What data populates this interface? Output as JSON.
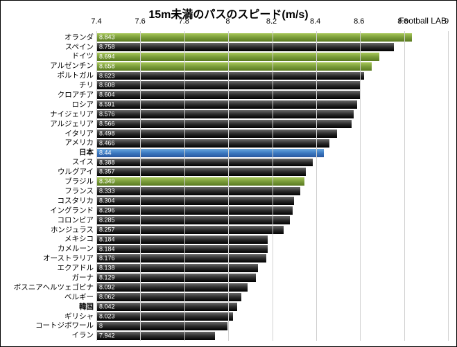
{
  "chart": {
    "type": "horizontal-bar",
    "title": "15m未満のパスのスピード(m/s)",
    "source": "Football LAB",
    "title_fontsize": 16,
    "label_fontsize": 10.5,
    "value_fontsize": 9,
    "axis_fontsize": 11,
    "xmin": 7.4,
    "xmax": 9.0,
    "xtick_step": 0.2,
    "xticks": [
      "7.4",
      "7.6",
      "7.8",
      "8",
      "8.2",
      "8.4",
      "8.6",
      "8.8",
      "9"
    ],
    "background_color": "#ffffff",
    "gridline_color": "#d0d0d0",
    "colors": {
      "default": "#2a2a2a",
      "green": "#7a9c3a",
      "blue": "#3a78c0",
      "value_text": "#ffffff"
    },
    "rows": [
      {
        "label": "オランダ",
        "value": 8.843,
        "value_text": "8.843",
        "color": "green",
        "bold": false
      },
      {
        "label": "スペイン",
        "value": 8.758,
        "value_text": "8.758",
        "color": "default",
        "bold": false
      },
      {
        "label": "ドイツ",
        "value": 8.694,
        "value_text": "8.694",
        "color": "green",
        "bold": false
      },
      {
        "label": "アルゼンチン",
        "value": 8.658,
        "value_text": "8.658",
        "color": "green",
        "bold": false
      },
      {
        "label": "ポルトガル",
        "value": 8.623,
        "value_text": "8.623",
        "color": "default",
        "bold": false
      },
      {
        "label": "チリ",
        "value": 8.608,
        "value_text": "8.608",
        "color": "default",
        "bold": false
      },
      {
        "label": "クロアチア",
        "value": 8.604,
        "value_text": "8.604",
        "color": "default",
        "bold": false
      },
      {
        "label": "ロシア",
        "value": 8.591,
        "value_text": "8.591",
        "color": "default",
        "bold": false
      },
      {
        "label": "ナイジェリア",
        "value": 8.576,
        "value_text": "8.576",
        "color": "default",
        "bold": false
      },
      {
        "label": "アルジェリア",
        "value": 8.566,
        "value_text": "8.566",
        "color": "default",
        "bold": false
      },
      {
        "label": "イタリア",
        "value": 8.498,
        "value_text": "8.498",
        "color": "default",
        "bold": false
      },
      {
        "label": "アメリカ",
        "value": 8.466,
        "value_text": "8.466",
        "color": "default",
        "bold": false
      },
      {
        "label": "日本",
        "value": 8.44,
        "value_text": "8.44",
        "color": "blue",
        "bold": true
      },
      {
        "label": "スイス",
        "value": 8.388,
        "value_text": "8.388",
        "color": "default",
        "bold": false
      },
      {
        "label": "ウルグアイ",
        "value": 8.357,
        "value_text": "8.357",
        "color": "default",
        "bold": false
      },
      {
        "label": "ブラジル",
        "value": 8.349,
        "value_text": "8.349",
        "color": "green",
        "bold": false
      },
      {
        "label": "フランス",
        "value": 8.333,
        "value_text": "8.333",
        "color": "default",
        "bold": false
      },
      {
        "label": "コスタリカ",
        "value": 8.304,
        "value_text": "8.304",
        "color": "default",
        "bold": false
      },
      {
        "label": "イングランド",
        "value": 8.296,
        "value_text": "8.296",
        "color": "default",
        "bold": false
      },
      {
        "label": "コロンビア",
        "value": 8.285,
        "value_text": "8.285",
        "color": "default",
        "bold": false
      },
      {
        "label": "ホンジュラス",
        "value": 8.257,
        "value_text": "8.257",
        "color": "default",
        "bold": false
      },
      {
        "label": "メキシコ",
        "value": 8.184,
        "value_text": "8.184",
        "color": "default",
        "bold": false
      },
      {
        "label": "カメルーン",
        "value": 8.184,
        "value_text": "8.184",
        "color": "default",
        "bold": false
      },
      {
        "label": "オーストラリア",
        "value": 8.176,
        "value_text": "8.176",
        "color": "default",
        "bold": false
      },
      {
        "label": "エクアドル",
        "value": 8.138,
        "value_text": "8.138",
        "color": "default",
        "bold": false
      },
      {
        "label": "ガーナ",
        "value": 8.129,
        "value_text": "8.129",
        "color": "default",
        "bold": false
      },
      {
        "label": "ボスニアヘルツェゴビナ",
        "value": 8.092,
        "value_text": "8.092",
        "color": "default",
        "bold": false
      },
      {
        "label": "ベルギー",
        "value": 8.062,
        "value_text": "8.062",
        "color": "default",
        "bold": false
      },
      {
        "label": "韓国",
        "value": 8.042,
        "value_text": "8.042",
        "color": "default",
        "bold": true
      },
      {
        "label": "ギリシャ",
        "value": 8.023,
        "value_text": "8.023",
        "color": "default",
        "bold": false
      },
      {
        "label": "コートジボワール",
        "value": 8.0,
        "value_text": "8",
        "color": "default",
        "bold": false
      },
      {
        "label": "イラン",
        "value": 7.942,
        "value_text": "7.942",
        "color": "default",
        "bold": false
      }
    ]
  }
}
